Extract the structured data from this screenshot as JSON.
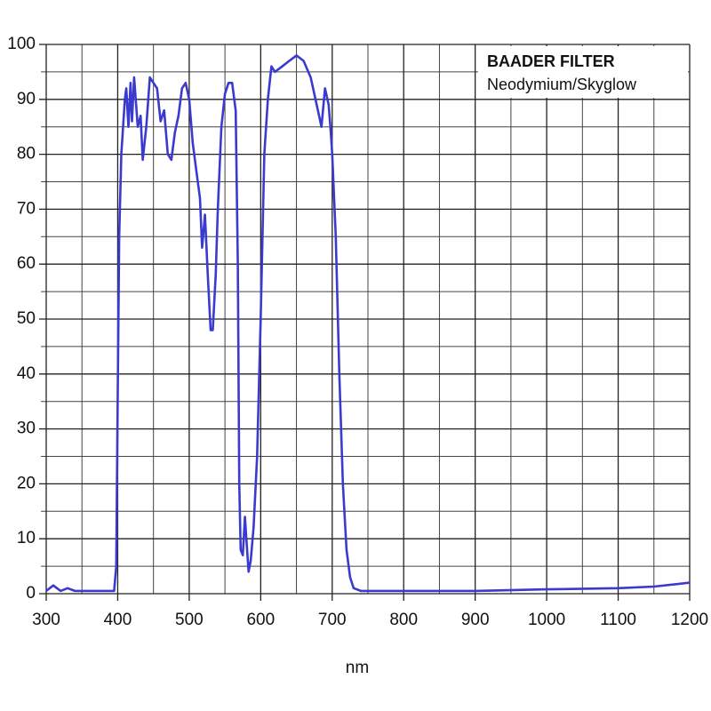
{
  "chart_data": {
    "type": "line",
    "title": "BAADER FILTER",
    "subtitle": "Neodymium/Skyglow",
    "x_label": "nm",
    "x": [
      300,
      310,
      320,
      330,
      340,
      360,
      380,
      395,
      398,
      400,
      402,
      405,
      410,
      412,
      415,
      418,
      420,
      423,
      428,
      432,
      435,
      440,
      445,
      450,
      455,
      460,
      465,
      470,
      475,
      480,
      485,
      490,
      495,
      500,
      505,
      510,
      515,
      518,
      522,
      526,
      530,
      533,
      537,
      540,
      545,
      550,
      555,
      560,
      565,
      568,
      570,
      572,
      575,
      578,
      580,
      583,
      586,
      590,
      595,
      600,
      605,
      610,
      615,
      620,
      630,
      640,
      650,
      660,
      670,
      680,
      685,
      690,
      695,
      698,
      700,
      705,
      710,
      715,
      720,
      725,
      730,
      740,
      800,
      900,
      1000,
      1100,
      1150,
      1200
    ],
    "values": [
      0.5,
      1.5,
      0.5,
      1,
      0.5,
      0.5,
      0.5,
      0.5,
      5,
      35,
      65,
      80,
      90,
      92,
      85,
      93,
      86,
      94,
      85,
      87,
      79,
      85,
      94,
      93,
      92,
      86,
      88,
      80,
      79,
      84,
      87,
      92,
      93,
      90,
      82,
      77,
      72,
      63,
      69,
      58,
      48,
      48,
      58,
      70,
      85,
      91,
      93,
      93,
      88,
      60,
      20,
      8,
      7,
      14,
      10,
      4,
      6,
      12,
      25,
      50,
      80,
      90,
      96,
      95,
      96,
      97,
      98,
      97,
      94,
      88,
      85,
      92,
      89,
      84,
      80,
      65,
      40,
      20,
      8,
      3,
      1,
      0.5,
      0.5,
      0.5,
      0.8,
      1,
      1.3,
      2
    ],
    "color": "#3a3ad0",
    "xlim": [
      300,
      1200
    ],
    "xticks": [
      300,
      400,
      500,
      600,
      700,
      800,
      900,
      1000,
      1100,
      1200
    ],
    "xminorticks": [
      350,
      450,
      550,
      650,
      750,
      850,
      950,
      1050,
      1150
    ],
    "ylim": [
      0,
      100
    ],
    "yticks": [
      0,
      10,
      20,
      30,
      40,
      50,
      60,
      70,
      80,
      90,
      100
    ],
    "yminorticks": [
      5,
      15,
      25,
      35,
      45,
      55,
      65,
      75,
      85,
      95
    ],
    "grid": true
  }
}
